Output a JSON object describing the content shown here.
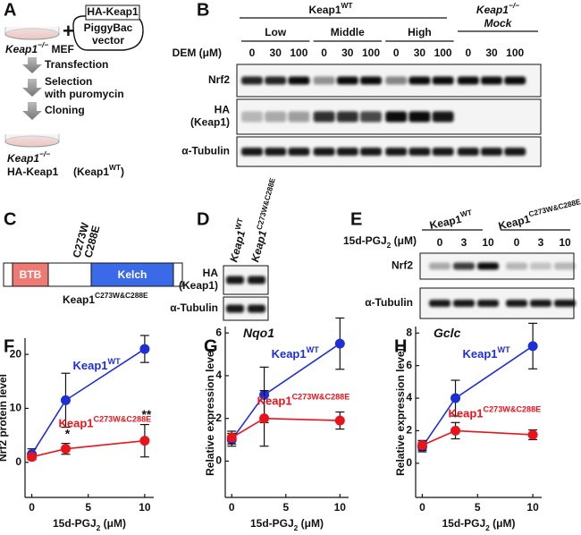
{
  "panels": {
    "A": {
      "label": "A",
      "mef": [
        {
          "text": "Keap1",
          "italic": true
        },
        {
          "text": "−/−",
          "sup": true,
          "italic": true
        },
        {
          "text": " MEF"
        }
      ],
      "plus": "+",
      "insert": "HA-Keap1",
      "vector": [
        "PiggyBac",
        "vector"
      ],
      "steps": [
        [
          "Transfection"
        ],
        [
          "Selection",
          "with puromycin"
        ],
        [
          "Cloning"
        ]
      ],
      "result": [
        [
          {
            "text": "Keap1",
            "italic": true
          },
          {
            "text": "−/−",
            "sup": true,
            "italic": true
          }
        ],
        [
          {
            "text": "HA-Keap1"
          }
        ],
        [
          {
            "text": "(Keap1"
          },
          {
            "text": "WT",
            "sup": true
          },
          {
            "text": ")"
          }
        ]
      ]
    },
    "B": {
      "label": "B",
      "header": [
        {
          "text": "Keap1"
        },
        {
          "text": "WT",
          "sup": true
        }
      ],
      "mock": [
        [
          {
            "text": "Keap1",
            "italic": true
          },
          {
            "text": "−/−",
            "sup": true,
            "italic": true
          }
        ],
        [
          {
            "text": "Mock",
            "italic": true
          }
        ]
      ],
      "groups": [
        "Low",
        "Middle",
        "High"
      ],
      "dose_label": "DEM (μM)",
      "doses": [
        [
          0,
          30,
          100
        ],
        [
          0,
          30,
          100
        ],
        [
          0,
          30,
          100
        ],
        [
          0,
          30,
          100
        ]
      ],
      "rows": [
        [
          "Nrf2"
        ],
        [
          "HA",
          "(Keap1)"
        ],
        [
          "α-Tubulin"
        ]
      ]
    },
    "C": {
      "label": "C",
      "mutations": [
        "C273W",
        "C288E"
      ],
      "domains": [
        "BTB",
        "Kelch"
      ],
      "construct": [
        {
          "text": "Keap1"
        },
        {
          "text": "C273W&C288E",
          "sup": true
        }
      ]
    },
    "D": {
      "label": "D",
      "lanes": [
        [
          {
            "text": "Keap1",
            "italic": true
          },
          {
            "text": "WT",
            "sup": true
          }
        ],
        [
          {
            "text": "Keap1",
            "italic": true
          },
          {
            "text": "C273W&C288E",
            "sup": true
          }
        ]
      ],
      "rows": [
        [
          "HA",
          "(Keap1)"
        ],
        [
          "α-Tubulin"
        ]
      ]
    },
    "E": {
      "label": "E",
      "groups": [
        [
          {
            "text": "Keap1"
          },
          {
            "text": "WT",
            "sup": true
          }
        ],
        [
          {
            "text": "Keap1"
          },
          {
            "text": "C273W&C288E",
            "sup": true
          }
        ]
      ],
      "dose_label": [
        {
          "text": "15d-PGJ"
        },
        {
          "text": "2",
          "sub": true
        },
        {
          "text": " (μM)"
        }
      ],
      "doses": [
        [
          0,
          3,
          10
        ],
        [
          0,
          3,
          10
        ]
      ],
      "rows": [
        [
          "Nrf2"
        ],
        [
          "α-Tubulin"
        ]
      ]
    }
  },
  "chart_data": [
    {
      "type": "line",
      "label": "F",
      "ylabel": "Nrf2 protein level",
      "xlabel": [
        {
          "text": "15d-PGJ"
        },
        {
          "text": "2",
          "sub": true
        },
        {
          "text": " (μM)"
        }
      ],
      "x": [
        0,
        3,
        10
      ],
      "xlim": [
        -0.6,
        10.8
      ],
      "xticks": [
        0,
        5,
        10
      ],
      "ylim": [
        -6.5,
        23
      ],
      "yticks": [
        0,
        10,
        20
      ],
      "series": [
        {
          "name": [
            {
              "text": "Keap1"
            },
            {
              "text": "WT",
              "sup": true
            }
          ],
          "color": "#1f2fd8",
          "values": [
            1.5,
            11.5,
            21
          ],
          "errors": [
            1,
            5,
            2.5
          ]
        },
        {
          "name": [
            {
              "text": "Keap1"
            },
            {
              "text": "C273W&C288E",
              "sup": true
            }
          ],
          "color": "#e8141b",
          "values": [
            1,
            2.5,
            4
          ],
          "errors": [
            0.5,
            1,
            3
          ]
        }
      ],
      "annotations": [
        {
          "text": "*",
          "x": 3
        },
        {
          "text": "**",
          "x": 10
        }
      ]
    },
    {
      "type": "line",
      "label": "G",
      "title": [
        {
          "text": "Nqo1",
          "italic": true
        }
      ],
      "ylabel": "Relative expression level",
      "xlabel": [
        {
          "text": "15d-PGJ"
        },
        {
          "text": "2",
          "sub": true
        },
        {
          "text": " (μM)"
        }
      ],
      "x": [
        0,
        3,
        10
      ],
      "xlim": [
        -0.6,
        10.8
      ],
      "xticks": [
        0,
        5,
        10
      ],
      "ylim": [
        -1.7,
        6.3
      ],
      "yticks": [
        0,
        2,
        4,
        6
      ],
      "series": [
        {
          "name": [
            {
              "text": "Keap1"
            },
            {
              "text": "WT",
              "sup": true
            }
          ],
          "color": "#1f2fd8",
          "values": [
            1,
            3.1,
            5.5
          ],
          "errors": [
            0.3,
            1.3,
            1.2
          ]
        },
        {
          "name": [
            {
              "text": "Keap1"
            },
            {
              "text": "C273W&C288E",
              "sup": true
            }
          ],
          "color": "#e8141b",
          "values": [
            1.1,
            2,
            1.9
          ],
          "errors": [
            0.3,
            1.3,
            0.4
          ]
        }
      ]
    },
    {
      "type": "line",
      "label": "H",
      "title": [
        {
          "text": "Gclc",
          "italic": true
        }
      ],
      "ylabel": "Relative expression level",
      "xlabel": [
        {
          "text": "15d-PGJ"
        },
        {
          "text": "2",
          "sub": true
        },
        {
          "text": " (μM)"
        }
      ],
      "x": [
        0,
        3,
        10
      ],
      "xlim": [
        -0.6,
        10.8
      ],
      "xticks": [
        0,
        5,
        10
      ],
      "ylim": [
        -2.1,
        8.4
      ],
      "yticks": [
        0,
        2,
        4,
        6,
        8
      ],
      "series": [
        {
          "name": [
            {
              "text": "Keap1"
            },
            {
              "text": "WT",
              "sup": true
            }
          ],
          "color": "#1f2fd8",
          "values": [
            1,
            4,
            7.2
          ],
          "errors": [
            0.3,
            1.1,
            1.4
          ]
        },
        {
          "name": [
            {
              "text": "Keap1"
            },
            {
              "text": "C273W&C288E",
              "sup": true
            }
          ],
          "color": "#e8141b",
          "values": [
            1.1,
            2,
            1.75
          ],
          "errors": [
            0.3,
            0.5,
            0.3
          ]
        }
      ]
    }
  ]
}
